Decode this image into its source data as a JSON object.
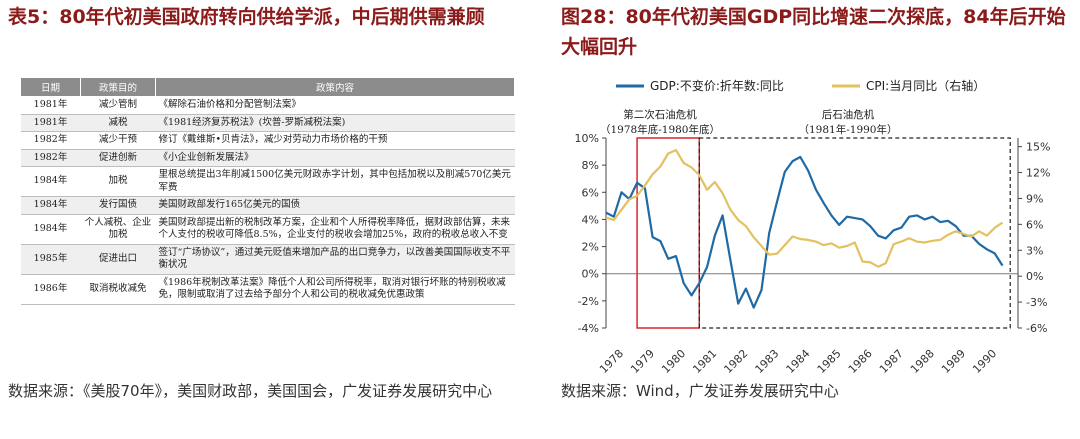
{
  "left": {
    "title": "表5：80年代初美国政府转向供给学派，中后期供需兼顾",
    "source": "数据来源：《美股70年》，美国财政部，美国国会，广发证券发展研究中心",
    "table": {
      "headers": [
        "日期",
        "政策目的",
        "政策内容"
      ],
      "rows": [
        {
          "year": "1981年",
          "goal": "减少管制",
          "content": "《解除石油价格和分配管制法案》"
        },
        {
          "year": "1981年",
          "goal": "减税",
          "content": "《1981经济复苏税法》(坎普-罗斯减税法案)"
        },
        {
          "year": "1982年",
          "goal": "减少干预",
          "content": "修订《戴维斯•贝肯法》，减少对劳动力市场价格的干预"
        },
        {
          "year": "1982年",
          "goal": "促进创新",
          "content": "《小企业创新发展法》"
        },
        {
          "year": "1984年",
          "goal": "加税",
          "content": "里根总统提出3年削减1500亿美元财政赤字计划，其中包括加税以及削减570亿美元军费"
        },
        {
          "year": "1984年",
          "goal": "发行国债",
          "content": "美国财政部发行165亿美元的国债"
        },
        {
          "year": "1984年",
          "goal": "个人减税、企业加税",
          "content": "美国财政部提出新的税制改革方案，企业和个人所得税率降低，据财政部估算，未来个人支付的税收可降低8.5%，企业支付的税收会增加25%，政府的税收总收入不变"
        },
        {
          "year": "1985年",
          "goal": "促进出口",
          "content": "签订“广场协议”，通过美元贬值来增加产品的出口竞争力，以改善美国国际收支不平衡状况"
        },
        {
          "year": "1986年",
          "goal": "取消税收减免",
          "content": "《1986年税制改革法案》降低个人和公司所得税率，取消对银行坏账的特别税收减免，限制或取消了过去给予部分个人和公司的税收减免优惠政策"
        }
      ]
    }
  },
  "right": {
    "title": "图28：80年代初美国GDP同比增速二次探底，84年后开始大幅回升",
    "source": "数据来源：Wind，广发证券发展研究中心"
  },
  "chart_data": {
    "type": "line",
    "title": "80年代初美国GDP同比增速二次探底，84年后开始大幅回升",
    "legend": [
      "GDP:不变价:折年数:同比",
      "CPI:当月同比（右轴）"
    ],
    "legend_placement": "top",
    "x_labels": [
      "1978",
      "1979",
      "1980",
      "1981",
      "1982",
      "1983",
      "1984",
      "1985",
      "1986",
      "1987",
      "1988",
      "1989",
      "1990"
    ],
    "x_range": [
      1978,
      1991.25
    ],
    "y_left": {
      "range": [
        -4,
        10
      ],
      "ticks": [
        -4,
        -2,
        0,
        2,
        4,
        6,
        8,
        10
      ],
      "tick_labels": [
        "-4%",
        "-2%",
        "0%",
        "2%",
        "4%",
        "6%",
        "8%",
        "10%"
      ]
    },
    "y_right": {
      "range": [
        -6,
        16
      ],
      "ticks": [
        -6,
        -3,
        0,
        3,
        6,
        9,
        12,
        15
      ],
      "tick_labels": [
        "-6%",
        "-3%",
        "0%",
        "3%",
        "6%",
        "9%",
        "12%",
        "15%"
      ]
    },
    "series": [
      {
        "name": "GDP:不变价:折年数:同比",
        "color": "#1f6aa5",
        "axis": "left",
        "points": [
          [
            1978.0,
            4.5
          ],
          [
            1978.25,
            4.2
          ],
          [
            1978.5,
            6.0
          ],
          [
            1978.75,
            5.5
          ],
          [
            1979.0,
            6.7
          ],
          [
            1979.25,
            6.3
          ],
          [
            1979.5,
            2.7
          ],
          [
            1979.75,
            2.4
          ],
          [
            1980.0,
            1.1
          ],
          [
            1980.25,
            1.3
          ],
          [
            1980.5,
            -0.7
          ],
          [
            1980.75,
            -1.6
          ],
          [
            1981.0,
            -0.7
          ],
          [
            1981.25,
            0.5
          ],
          [
            1981.5,
            2.8
          ],
          [
            1981.75,
            4.3
          ],
          [
            1982.0,
            1.0
          ],
          [
            1982.25,
            -2.2
          ],
          [
            1982.5,
            -1.1
          ],
          [
            1982.75,
            -2.5
          ],
          [
            1983.0,
            -1.2
          ],
          [
            1983.25,
            3.0
          ],
          [
            1983.5,
            5.3
          ],
          [
            1983.75,
            7.5
          ],
          [
            1984.0,
            8.3
          ],
          [
            1984.25,
            8.6
          ],
          [
            1984.5,
            7.6
          ],
          [
            1984.75,
            6.2
          ],
          [
            1985.0,
            5.2
          ],
          [
            1985.25,
            4.3
          ],
          [
            1985.5,
            3.6
          ],
          [
            1985.75,
            4.2
          ],
          [
            1986.0,
            4.1
          ],
          [
            1986.25,
            4.0
          ],
          [
            1986.5,
            3.5
          ],
          [
            1986.75,
            2.8
          ],
          [
            1987.0,
            2.6
          ],
          [
            1987.25,
            3.2
          ],
          [
            1987.5,
            3.4
          ],
          [
            1987.75,
            4.2
          ],
          [
            1988.0,
            4.3
          ],
          [
            1988.25,
            4.0
          ],
          [
            1988.5,
            4.2
          ],
          [
            1988.75,
            3.8
          ],
          [
            1989.0,
            3.9
          ],
          [
            1989.25,
            3.5
          ],
          [
            1989.5,
            2.8
          ],
          [
            1989.75,
            2.8
          ],
          [
            1990.0,
            2.2
          ],
          [
            1990.25,
            1.8
          ],
          [
            1990.5,
            1.5
          ],
          [
            1990.75,
            0.6
          ]
        ]
      },
      {
        "name": "CPI:当月同比（右轴）",
        "color": "#e3c15f",
        "axis": "right",
        "points": [
          [
            1978.0,
            6.8
          ],
          [
            1978.25,
            6.5
          ],
          [
            1978.5,
            7.7
          ],
          [
            1978.75,
            8.9
          ],
          [
            1979.0,
            9.3
          ],
          [
            1979.25,
            10.5
          ],
          [
            1979.5,
            11.8
          ],
          [
            1979.75,
            12.7
          ],
          [
            1980.0,
            14.2
          ],
          [
            1980.25,
            14.6
          ],
          [
            1980.5,
            13.1
          ],
          [
            1980.75,
            12.6
          ],
          [
            1981.0,
            11.7
          ],
          [
            1981.25,
            10.0
          ],
          [
            1981.5,
            10.9
          ],
          [
            1981.75,
            9.6
          ],
          [
            1982.0,
            7.7
          ],
          [
            1982.25,
            6.5
          ],
          [
            1982.5,
            5.8
          ],
          [
            1982.75,
            4.5
          ],
          [
            1983.0,
            3.5
          ],
          [
            1983.25,
            2.5
          ],
          [
            1983.5,
            2.6
          ],
          [
            1983.75,
            3.6
          ],
          [
            1984.0,
            4.6
          ],
          [
            1984.25,
            4.3
          ],
          [
            1984.5,
            4.2
          ],
          [
            1984.75,
            4.0
          ],
          [
            1985.0,
            3.6
          ],
          [
            1985.25,
            3.8
          ],
          [
            1985.5,
            3.3
          ],
          [
            1985.75,
            3.5
          ],
          [
            1986.0,
            3.9
          ],
          [
            1986.25,
            1.7
          ],
          [
            1986.5,
            1.6
          ],
          [
            1986.75,
            1.1
          ],
          [
            1987.0,
            1.5
          ],
          [
            1987.25,
            3.7
          ],
          [
            1987.5,
            4.0
          ],
          [
            1987.75,
            4.4
          ],
          [
            1988.0,
            4.0
          ],
          [
            1988.25,
            3.9
          ],
          [
            1988.5,
            4.1
          ],
          [
            1988.75,
            4.2
          ],
          [
            1989.0,
            4.8
          ],
          [
            1989.25,
            5.2
          ],
          [
            1989.5,
            4.9
          ],
          [
            1989.75,
            4.6
          ],
          [
            1990.0,
            5.2
          ],
          [
            1990.25,
            4.7
          ],
          [
            1990.5,
            5.6
          ],
          [
            1990.75,
            6.2
          ]
        ]
      }
    ],
    "annotations": [
      {
        "label": "第二次石油危机",
        "range_label": "（1978年底-1980年底）",
        "x_start": 1979.0,
        "x_end": 1981.0,
        "style": "red-box"
      },
      {
        "label": "后石油危机",
        "range_label": "（1981年-1990年）",
        "x_start": 1981.0,
        "x_end": 1991.0,
        "style": "dashed-box"
      }
    ]
  }
}
